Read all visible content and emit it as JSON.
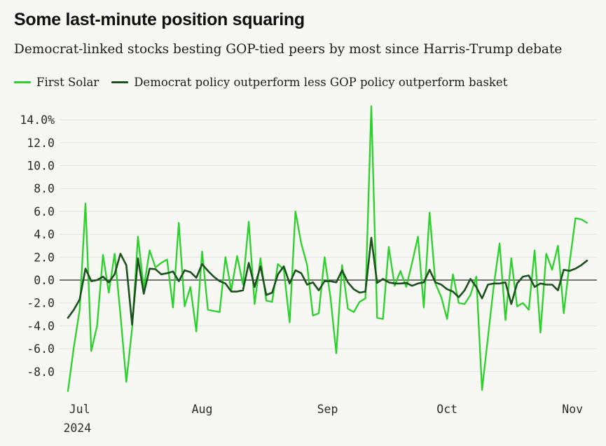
{
  "header": {
    "title": "Some last-minute position squaring",
    "subtitle": "Democrat-linked stocks besting GOP-tied peers by most since Harris-Trump debate"
  },
  "legend": {
    "items": [
      {
        "label": "First Solar",
        "color": "#2bd22b"
      },
      {
        "label": "Democrat policy outperform less GOP policy outperform basket",
        "color": "#1c501c"
      }
    ]
  },
  "chart_data": {
    "type": "line",
    "title": "Some last-minute position squaring",
    "subtitle": "Democrat-linked stocks besting GOP-tied peers by most since Harris-Trump debate",
    "unit": "%",
    "grid": true,
    "legend_position": "top",
    "colors": {
      "background": "#f7f7f4",
      "gridline": "#e4e4e2",
      "zero_line": "#4a4a4a"
    },
    "y_axis": {
      "tick_labels": [
        "14.0%",
        "12.0",
        "10.0",
        "8.0",
        "6.0",
        "4.0",
        "2.0",
        "0.0",
        "-2.0",
        "-4.0",
        "-6.0",
        "-8.0"
      ],
      "tick_values": [
        14,
        12,
        10,
        8,
        6,
        4,
        2,
        0,
        -2,
        -4,
        -6,
        -8
      ],
      "range": [
        -10.3,
        15.7
      ]
    },
    "x_axis": {
      "tick_labels": [
        "Jul",
        "Aug",
        "Sep",
        "Oct",
        "Nov"
      ],
      "tick_day_indices": [
        2,
        23,
        44.5,
        65,
        86.5
      ],
      "year_label": "2024",
      "year_day_index": 1.6,
      "start": "Jul 2024",
      "end": "Nov 2024"
    },
    "series": [
      {
        "name": "First Solar",
        "color": "#2bd22b",
        "stroke_width": 2.3,
        "values": [
          -9.7,
          -5.9,
          -2.6,
          6.7,
          -6.2,
          -4.0,
          2.2,
          -1.1,
          2.3,
          -3.0,
          -8.9,
          -4.2,
          3.8,
          -0.7,
          2.6,
          1.1,
          1.5,
          1.8,
          -2.4,
          5.0,
          -2.3,
          -0.6,
          -4.5,
          2.5,
          -2.6,
          -2.7,
          -2.8,
          2.0,
          -0.9,
          2.1,
          -0.4,
          5.1,
          -2.1,
          1.9,
          -1.8,
          -1.9,
          1.4,
          0.9,
          -3.7,
          6.0,
          3.2,
          1.3,
          -3.1,
          -2.9,
          2.0,
          -1.5,
          -6.4,
          1.3,
          -2.5,
          -2.8,
          -1.9,
          -1.6,
          15.2,
          -3.3,
          -3.4,
          2.9,
          -0.5,
          0.8,
          -0.6,
          1.5,
          3.8,
          -2.4,
          5.9,
          -0.3,
          -1.5,
          -3.4,
          0.5,
          -2.0,
          -2.1,
          -1.3,
          0.3,
          -9.6,
          -5.0,
          -0.5,
          3.2,
          -3.5,
          1.9,
          -2.3,
          -2.0,
          -2.6,
          2.6,
          -4.6,
          2.3,
          0.9,
          3.0,
          -2.9,
          1.5,
          5.4,
          5.3,
          5.0
        ]
      },
      {
        "name": "Democrat policy outperform less GOP policy outperform basket",
        "color": "#1c501c",
        "stroke_width": 2.6,
        "values": [
          -3.3,
          -2.6,
          -1.7,
          1.0,
          -0.1,
          0.0,
          0.3,
          -0.2,
          0.5,
          2.3,
          1.3,
          -3.9,
          1.9,
          -1.2,
          1.0,
          0.95,
          0.5,
          0.6,
          0.75,
          -0.1,
          0.85,
          0.7,
          0.2,
          1.4,
          0.8,
          0.3,
          -0.1,
          -0.3,
          -1.0,
          -1.0,
          -0.9,
          1.5,
          -0.6,
          1.2,
          -1.3,
          -1.1,
          0.5,
          1.2,
          -0.3,
          0.85,
          0.6,
          -0.4,
          -0.2,
          -0.9,
          -0.1,
          -0.1,
          -0.2,
          0.85,
          -0.2,
          -0.8,
          -1.1,
          -1.0,
          3.7,
          -0.25,
          0.1,
          -0.2,
          -0.3,
          -0.3,
          -0.25,
          -0.5,
          -0.3,
          -0.2,
          0.9,
          -0.2,
          -0.4,
          -0.8,
          -1.0,
          -1.5,
          -0.9,
          0.1,
          -0.6,
          -1.6,
          -0.4,
          -0.3,
          -0.3,
          -0.2,
          -2.1,
          -0.3,
          0.3,
          0.4,
          -0.6,
          -0.3,
          -0.4,
          -0.4,
          -0.9,
          0.9,
          0.8,
          1.0,
          1.3,
          1.7
        ]
      }
    ]
  }
}
